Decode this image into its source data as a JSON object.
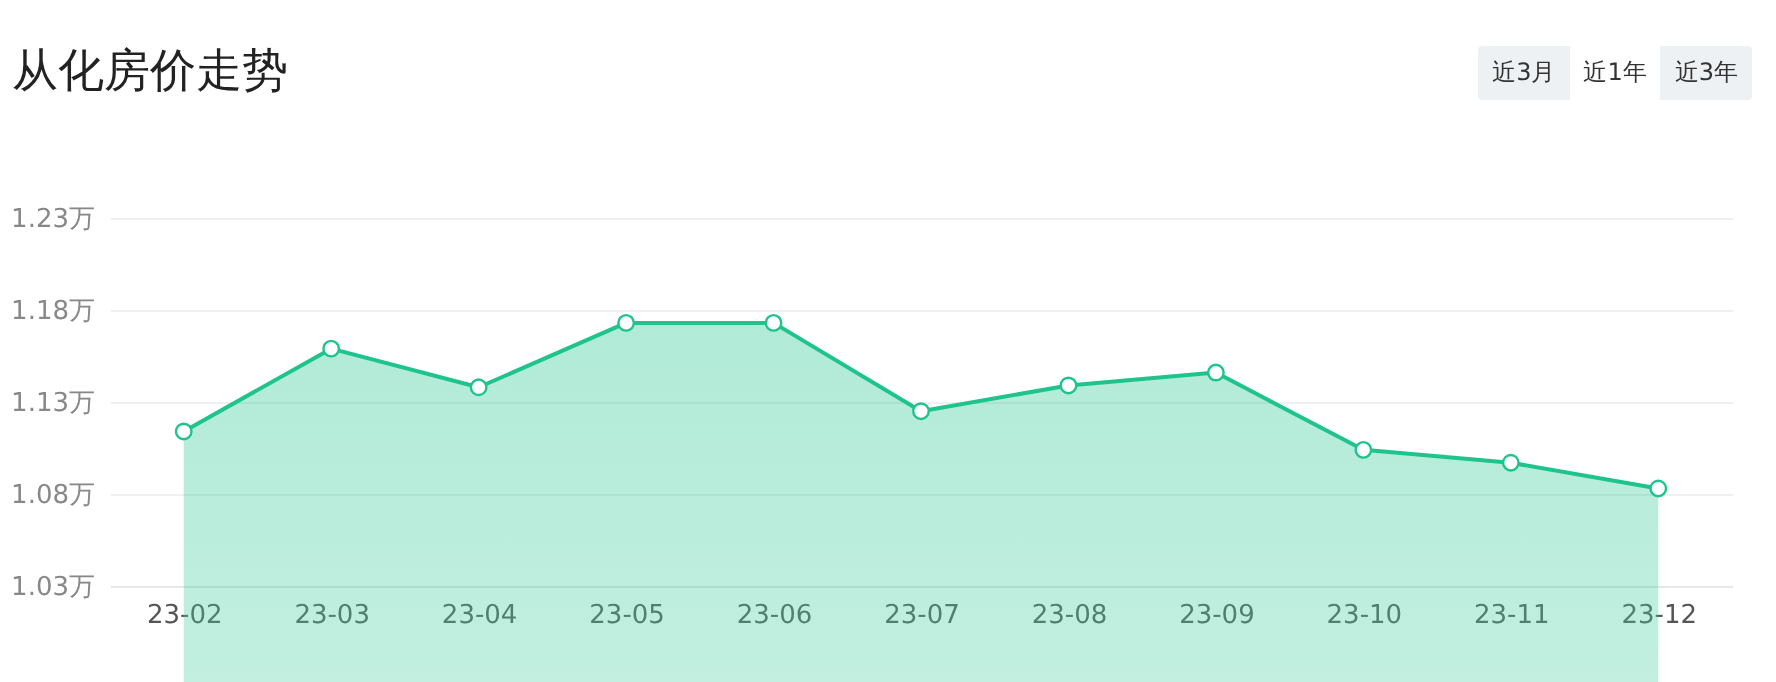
{
  "chart_data": {
    "type": "area",
    "title": "从化房价走势",
    "annotations": [
      "近3月",
      "近1年",
      "近3年"
    ],
    "categories": [
      "23-02",
      "23-03",
      "23-04",
      "23-05",
      "23-06",
      "23-07",
      "23-08",
      "23-09",
      "23-10",
      "23-11",
      "23-12"
    ],
    "values": [
      1.114,
      1.159,
      1.138,
      1.173,
      1.173,
      1.125,
      1.139,
      1.146,
      1.104,
      1.097,
      1.083
    ],
    "color": "#1fc48d",
    "ylim": [
      1.03,
      1.23
    ],
    "yticks": [
      {
        "value": 1.03,
        "label": "1.03万"
      },
      {
        "value": 1.08,
        "label": "1.08万"
      },
      {
        "value": 1.13,
        "label": "1.13万"
      },
      {
        "value": 1.18,
        "label": "1.18万"
      },
      {
        "value": 1.23,
        "label": "1.23万"
      }
    ],
    "grid": "y",
    "marker": "circle"
  }
}
